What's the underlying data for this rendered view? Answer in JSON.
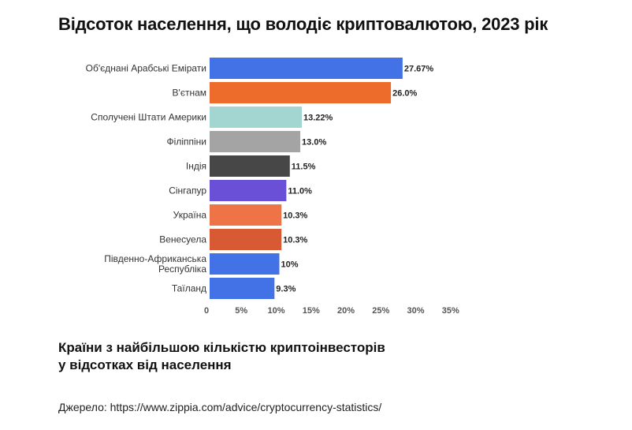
{
  "header": {
    "title": "Відсоток населення, що володіє криптовалютою, 2023 рік"
  },
  "chart_data": {
    "type": "bar",
    "orientation": "horizontal",
    "title": "",
    "xlabel": "",
    "ylabel": "",
    "categories": [
      "Об'єднані Арабські Емірати",
      "В'єтнам",
      "Сполучені Штати Америки",
      "Філіппіни",
      "Індія",
      "Сінгапур",
      "Україна",
      "Венесуела",
      "Південно-Африканська Республіка",
      "Таїланд"
    ],
    "category_lines": [
      [
        "Об'єднані Арабські Емірати"
      ],
      [
        "В'єтнам"
      ],
      [
        "Сполучені Штати Америки"
      ],
      [
        "Філіппіни"
      ],
      [
        "Індія"
      ],
      [
        "Сінгапур"
      ],
      [
        "Україна"
      ],
      [
        "Венесуела"
      ],
      [
        "Південно-Африканська",
        "Республіка"
      ],
      [
        "Таїланд"
      ]
    ],
    "values": [
      27.67,
      26.0,
      13.22,
      13.0,
      11.5,
      11.0,
      10.3,
      10.3,
      10,
      9.3
    ],
    "value_labels": [
      "27.67%",
      "26.0%",
      "13.22%",
      "13.0%",
      "11.5%",
      "11.0%",
      "10.3%",
      "10.3%",
      "10%",
      "9.3%"
    ],
    "colors": [
      "#4371e6",
      "#ee6c2b",
      "#a3d6d0",
      "#a4a4a4",
      "#474747",
      "#6a50d6",
      "#ee7447",
      "#d75a34",
      "#4371e6",
      "#4371e6"
    ],
    "xlim": [
      0,
      35
    ],
    "xticks": [
      0,
      5,
      10,
      15,
      20,
      25,
      30,
      35
    ],
    "xtick_labels": [
      "0",
      "5%",
      "10%",
      "15%",
      "20%",
      "25%",
      "30%",
      "35%"
    ],
    "grid": false,
    "legend": "none"
  },
  "footer": {
    "subtitle": "Країни з найбільшою кількістю криптоінвесторів у відсотках від населення",
    "source": "Джерело: https://www.zippia.com/advice/cryptocurrency-statistics/"
  }
}
